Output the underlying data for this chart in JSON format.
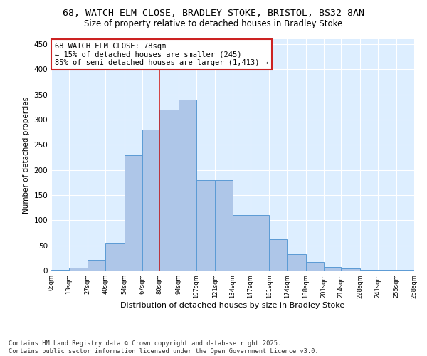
{
  "title_line1": "68, WATCH ELM CLOSE, BRADLEY STOKE, BRISTOL, BS32 8AN",
  "title_line2": "Size of property relative to detached houses in Bradley Stoke",
  "xlabel": "Distribution of detached houses by size in Bradley Stoke",
  "ylabel": "Number of detached properties",
  "bar_color": "#aec6e8",
  "bar_edge_color": "#5b9bd5",
  "background_color": "#ddeeff",
  "grid_color": "#ffffff",
  "annotation_line1": "68 WATCH ELM CLOSE: 78sqm",
  "annotation_line2": "← 15% of detached houses are smaller (245)",
  "annotation_line3": "85% of semi-detached houses are larger (1,413) →",
  "vline_x": 80,
  "vline_color": "#cc2222",
  "bin_edges": [
    0,
    13,
    27,
    40,
    54,
    67,
    80,
    94,
    107,
    121,
    134,
    147,
    161,
    174,
    188,
    201,
    214,
    228,
    241,
    255,
    268
  ],
  "bin_labels": [
    "0sqm",
    "13sqm",
    "27sqm",
    "40sqm",
    "54sqm",
    "67sqm",
    "80sqm",
    "94sqm",
    "107sqm",
    "121sqm",
    "134sqm",
    "147sqm",
    "161sqm",
    "174sqm",
    "188sqm",
    "201sqm",
    "214sqm",
    "228sqm",
    "241sqm",
    "255sqm",
    "268sqm"
  ],
  "bar_heights": [
    2,
    6,
    21,
    55,
    230,
    280,
    320,
    340,
    180,
    180,
    110,
    110,
    62,
    32,
    17,
    7,
    4,
    2,
    1,
    1
  ],
  "ylim": [
    0,
    460
  ],
  "yticks": [
    0,
    50,
    100,
    150,
    200,
    250,
    300,
    350,
    400,
    450
  ],
  "footer_text": "Contains HM Land Registry data © Crown copyright and database right 2025.\nContains public sector information licensed under the Open Government Licence v3.0.",
  "title_fontsize": 9.5,
  "subtitle_fontsize": 8.5,
  "annotation_fontsize": 7.5,
  "footer_fontsize": 6.2,
  "ylabel_fontsize": 7.5,
  "xlabel_fontsize": 8.0,
  "ytick_fontsize": 7.5,
  "xtick_fontsize": 6.0
}
